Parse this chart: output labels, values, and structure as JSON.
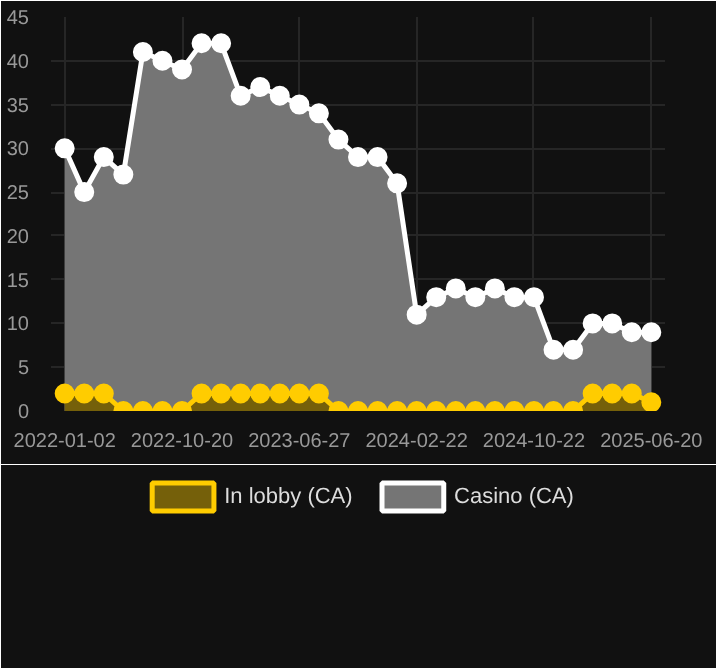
{
  "chart_data": {
    "type": "area",
    "categories": [
      "2022-01-02",
      null,
      null,
      null,
      null,
      null,
      "2022-10-20",
      null,
      null,
      null,
      null,
      null,
      "2023-06-27",
      null,
      null,
      null,
      null,
      null,
      "2024-02-22",
      null,
      null,
      null,
      null,
      null,
      "2024-10-22",
      null,
      null,
      null,
      null,
      null,
      "2025-06-20"
    ],
    "series": [
      {
        "name": "In lobby (CA)",
        "color": "#ffcc00",
        "values": [
          2,
          2,
          2,
          0,
          0,
          0,
          0,
          2,
          2,
          2,
          2,
          2,
          2,
          2,
          0,
          0,
          0,
          0,
          0,
          0,
          0,
          0,
          0,
          0,
          0,
          0,
          0,
          2,
          2,
          2,
          1
        ]
      },
      {
        "name": "Casino (CA)",
        "color": "#ffffff",
        "values": [
          30,
          25,
          29,
          27,
          41,
          40,
          39,
          42,
          42,
          36,
          37,
          36,
          35,
          34,
          31,
          29,
          29,
          26,
          11,
          13,
          14,
          13,
          14,
          13,
          13,
          7,
          7,
          10,
          10,
          9,
          9
        ]
      }
    ],
    "ylim": [
      0,
      45
    ],
    "yticks": [
      0,
      5,
      10,
      15,
      20,
      25,
      30,
      35,
      40,
      45
    ],
    "grid": true,
    "legend": "bottom",
    "marker": "circle",
    "line_style": "solid"
  }
}
